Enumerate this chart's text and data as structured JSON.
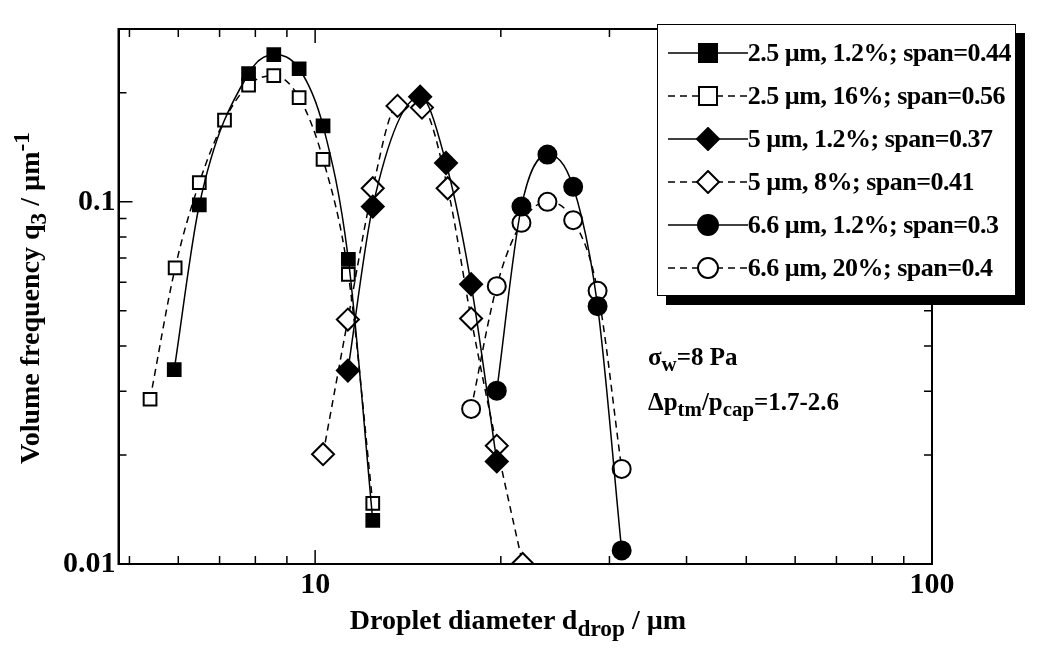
{
  "chart_data": {
    "type": "line",
    "xlabel": "Droplet diameter d$_{drop}$ / µm",
    "ylabel": "Volume frequency q$_{3}$ / µm$^{-1}$",
    "log": "xy",
    "xlim": [
      4.8,
      100
    ],
    "ylim": [
      0.01,
      0.3
    ],
    "xticks": [
      {
        "value": 5,
        "label": null
      },
      {
        "value": 6,
        "label": null
      },
      {
        "value": 7,
        "label": null
      },
      {
        "value": 8,
        "label": null
      },
      {
        "value": 9,
        "label": null
      },
      10,
      {
        "value": 20,
        "label": null
      },
      {
        "value": 30,
        "label": null
      },
      {
        "value": 40,
        "label": null
      },
      {
        "value": 50,
        "label": null
      },
      {
        "value": 60,
        "label": null
      },
      {
        "value": 70,
        "label": null
      },
      {
        "value": 80,
        "label": null
      },
      {
        "value": 90,
        "label": null
      },
      100
    ],
    "yticks": [
      0.01,
      {
        "value": 0.02,
        "label": null
      },
      {
        "value": 0.03,
        "label": null
      },
      {
        "value": 0.04,
        "label": null
      },
      {
        "value": 0.05,
        "label": null
      },
      {
        "value": 0.06,
        "label": null
      },
      {
        "value": 0.07,
        "label": null
      },
      {
        "value": 0.08,
        "label": null
      },
      {
        "value": 0.09,
        "label": null
      },
      0.1,
      {
        "value": 0.2,
        "label": null
      }
    ],
    "grid": false,
    "legend": "top right",
    "annotations": [
      "σ$_{w}$=8 Pa",
      "Δp$_{tm}$/p$_{cap}$=1.7-2.6"
    ],
    "series": [
      {
        "name": "2.5 µm, 1.2%; span=0.44",
        "color": "#000000",
        "marker": "square",
        "colors": [
          "#000000",
          "#000000",
          "#000000",
          "#000000",
          "#000000",
          "#000000",
          "#000000",
          "#000000"
        ],
        "line_style": "solid",
        "x": [
          5.91,
          6.49,
          7.8,
          8.57,
          9.42,
          10.3,
          11.32,
          12.4
        ],
        "values": [
          0.0344,
          0.098,
          0.226,
          0.255,
          0.233,
          0.162,
          0.0694,
          0.0132
        ]
      },
      {
        "name": "2.5 µm, 16%; span=0.56",
        "color": "#000000",
        "marker": "square",
        "colors": [
          "#ffffff",
          "#ffffff",
          "#ffffff",
          "#ffffff",
          "#ffffff",
          "#ffffff",
          "#ffffff",
          "#ffffff",
          "#ffffff",
          "#ffffff"
        ],
        "line_style": "dashed",
        "x": [
          5.4,
          5.93,
          6.49,
          7.13,
          7.8,
          8.57,
          9.42,
          10.3,
          11.32,
          12.4
        ],
        "values": [
          0.0285,
          0.0657,
          0.113,
          0.168,
          0.21,
          0.223,
          0.194,
          0.131,
          0.063,
          0.0147
        ]
      },
      {
        "name": "5 µm, 1.2%; span=0.37",
        "color": "#000000",
        "marker": "diamond",
        "colors": [
          "#000000",
          "#000000",
          "#000000",
          "#000000",
          "#000000",
          "#000000"
        ],
        "line_style": "solid",
        "x": [
          11.3,
          12.4,
          14.8,
          16.3,
          17.9,
          19.7
        ],
        "values": [
          0.0342,
          0.097,
          0.195,
          0.128,
          0.0592,
          0.0192
        ]
      },
      {
        "name": "5 µm, 8%; span=0.41",
        "color": "#000000",
        "marker": "diamond",
        "colors": [
          "#ffffff",
          "#ffffff",
          "#ffffff",
          "#ffffff",
          "#ffffff",
          "#ffffff",
          "#ffffff",
          "#ffffff",
          "#ffffff"
        ],
        "line_style": "dashed",
        "x": [
          10.3,
          11.3,
          12.4,
          13.6,
          14.9,
          16.4,
          17.9,
          19.7,
          21.7
        ],
        "values": [
          0.0201,
          0.0473,
          0.109,
          0.184,
          0.182,
          0.109,
          0.0476,
          0.0212,
          0.01
        ]
      },
      {
        "name": "6.6 µm, 1.2%; span=0.3",
        "color": "#000000",
        "marker": "circle",
        "colors": [
          "#000000",
          "#000000",
          "#000000",
          "#000000",
          "#000000",
          "#000000"
        ],
        "line_style": "solid",
        "x": [
          19.7,
          21.6,
          23.8,
          26.2,
          28.7,
          31.4
        ],
        "values": [
          0.0301,
          0.097,
          0.135,
          0.11,
          0.0515,
          0.0109
        ]
      },
      {
        "name": "6.6 µm, 20%; span=0.4",
        "color": "#000000",
        "marker": "circle",
        "colors": [
          "#ffffff",
          "#ffffff",
          "#ffffff",
          "#ffffff",
          "#ffffff",
          "#ffffff",
          "#ffffff"
        ],
        "line_style": "dashed",
        "x": [
          17.9,
          19.7,
          21.6,
          23.8,
          26.2,
          28.7,
          31.4
        ],
        "values": [
          0.0268,
          0.0585,
          0.0875,
          0.1,
          0.089,
          0.0568,
          0.0183
        ]
      }
    ]
  }
}
